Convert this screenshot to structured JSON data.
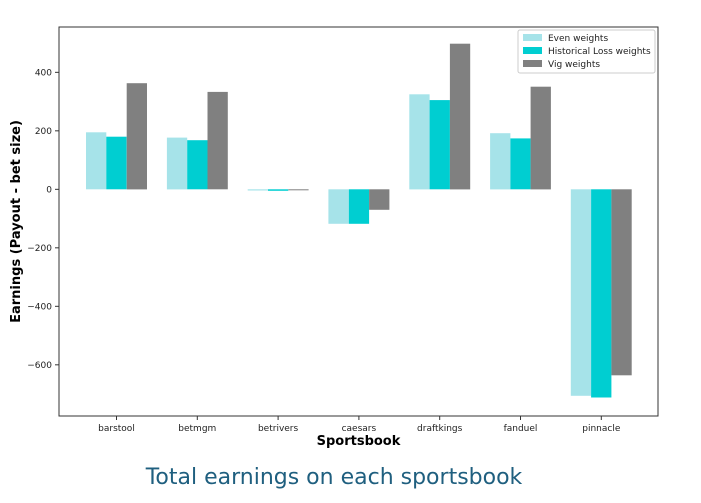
{
  "caption": "Total earnings on each sportsbook",
  "colors": {
    "Even weights": "#a6e3e9",
    "Historical Loss weights": "#00ced1",
    "Vig weights": "#808080"
  },
  "chart_data": {
    "type": "bar",
    "xlabel": "Sportsbook",
    "ylabel": "Earnings (Payout - bet size)",
    "categories": [
      "barstool",
      "betmgm",
      "betrivers",
      "caesars",
      "draftkings",
      "fanduel",
      "pinnacle"
    ],
    "series": [
      {
        "name": "Even weights",
        "values": [
          195,
          177,
          -4,
          -118,
          325,
          192,
          -706
        ]
      },
      {
        "name": "Historical Loss weights",
        "values": [
          180,
          168,
          -5,
          -118,
          305,
          174,
          -712
        ]
      },
      {
        "name": "Vig weights",
        "values": [
          363,
          333,
          -3,
          -70,
          498,
          351,
          -636
        ]
      }
    ],
    "ylim": [
      -775,
      555
    ],
    "yticks": [
      -600,
      -400,
      -200,
      0,
      200,
      400
    ],
    "legend": "top-right",
    "grid": false
  }
}
